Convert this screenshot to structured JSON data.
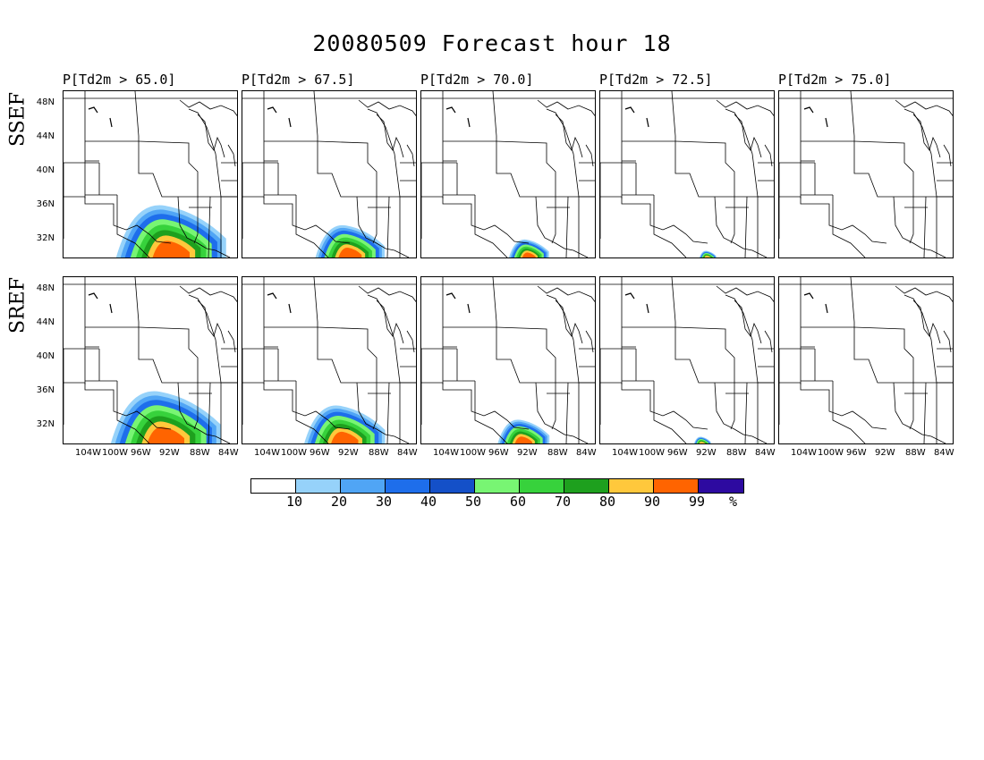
{
  "title": "20080509 Forecast hour 18",
  "columns": [
    "P[Td2m > 65.0]",
    "P[Td2m > 67.5]",
    "P[Td2m > 70.0]",
    "P[Td2m > 72.5]",
    "P[Td2m > 75.0]"
  ],
  "rows": [
    "SSEF",
    "SREF"
  ],
  "lat_labels": [
    "48N",
    "44N",
    "40N",
    "36N",
    "32N"
  ],
  "lon_labels": [
    "104W",
    "100W",
    "96W",
    "92W",
    "88W",
    "84W"
  ],
  "colorbar": {
    "colors": [
      "#ffffff",
      "#96d2fa",
      "#50a5f5",
      "#1e6eeb",
      "#1450c8",
      "#78f573",
      "#37d23c",
      "#1ea01e",
      "#ffc83c",
      "#ff6400",
      "#2d0aa0"
    ],
    "labels": [
      "10",
      "20",
      "30",
      "40",
      "50",
      "60",
      "70",
      "80",
      "90",
      "99",
      "%"
    ]
  },
  "probability_extent": {
    "SSEF": [
      0.95,
      0.6,
      0.35,
      0.15,
      0.0
    ],
    "SREF": [
      0.95,
      0.7,
      0.45,
      0.15,
      0.0
    ]
  }
}
